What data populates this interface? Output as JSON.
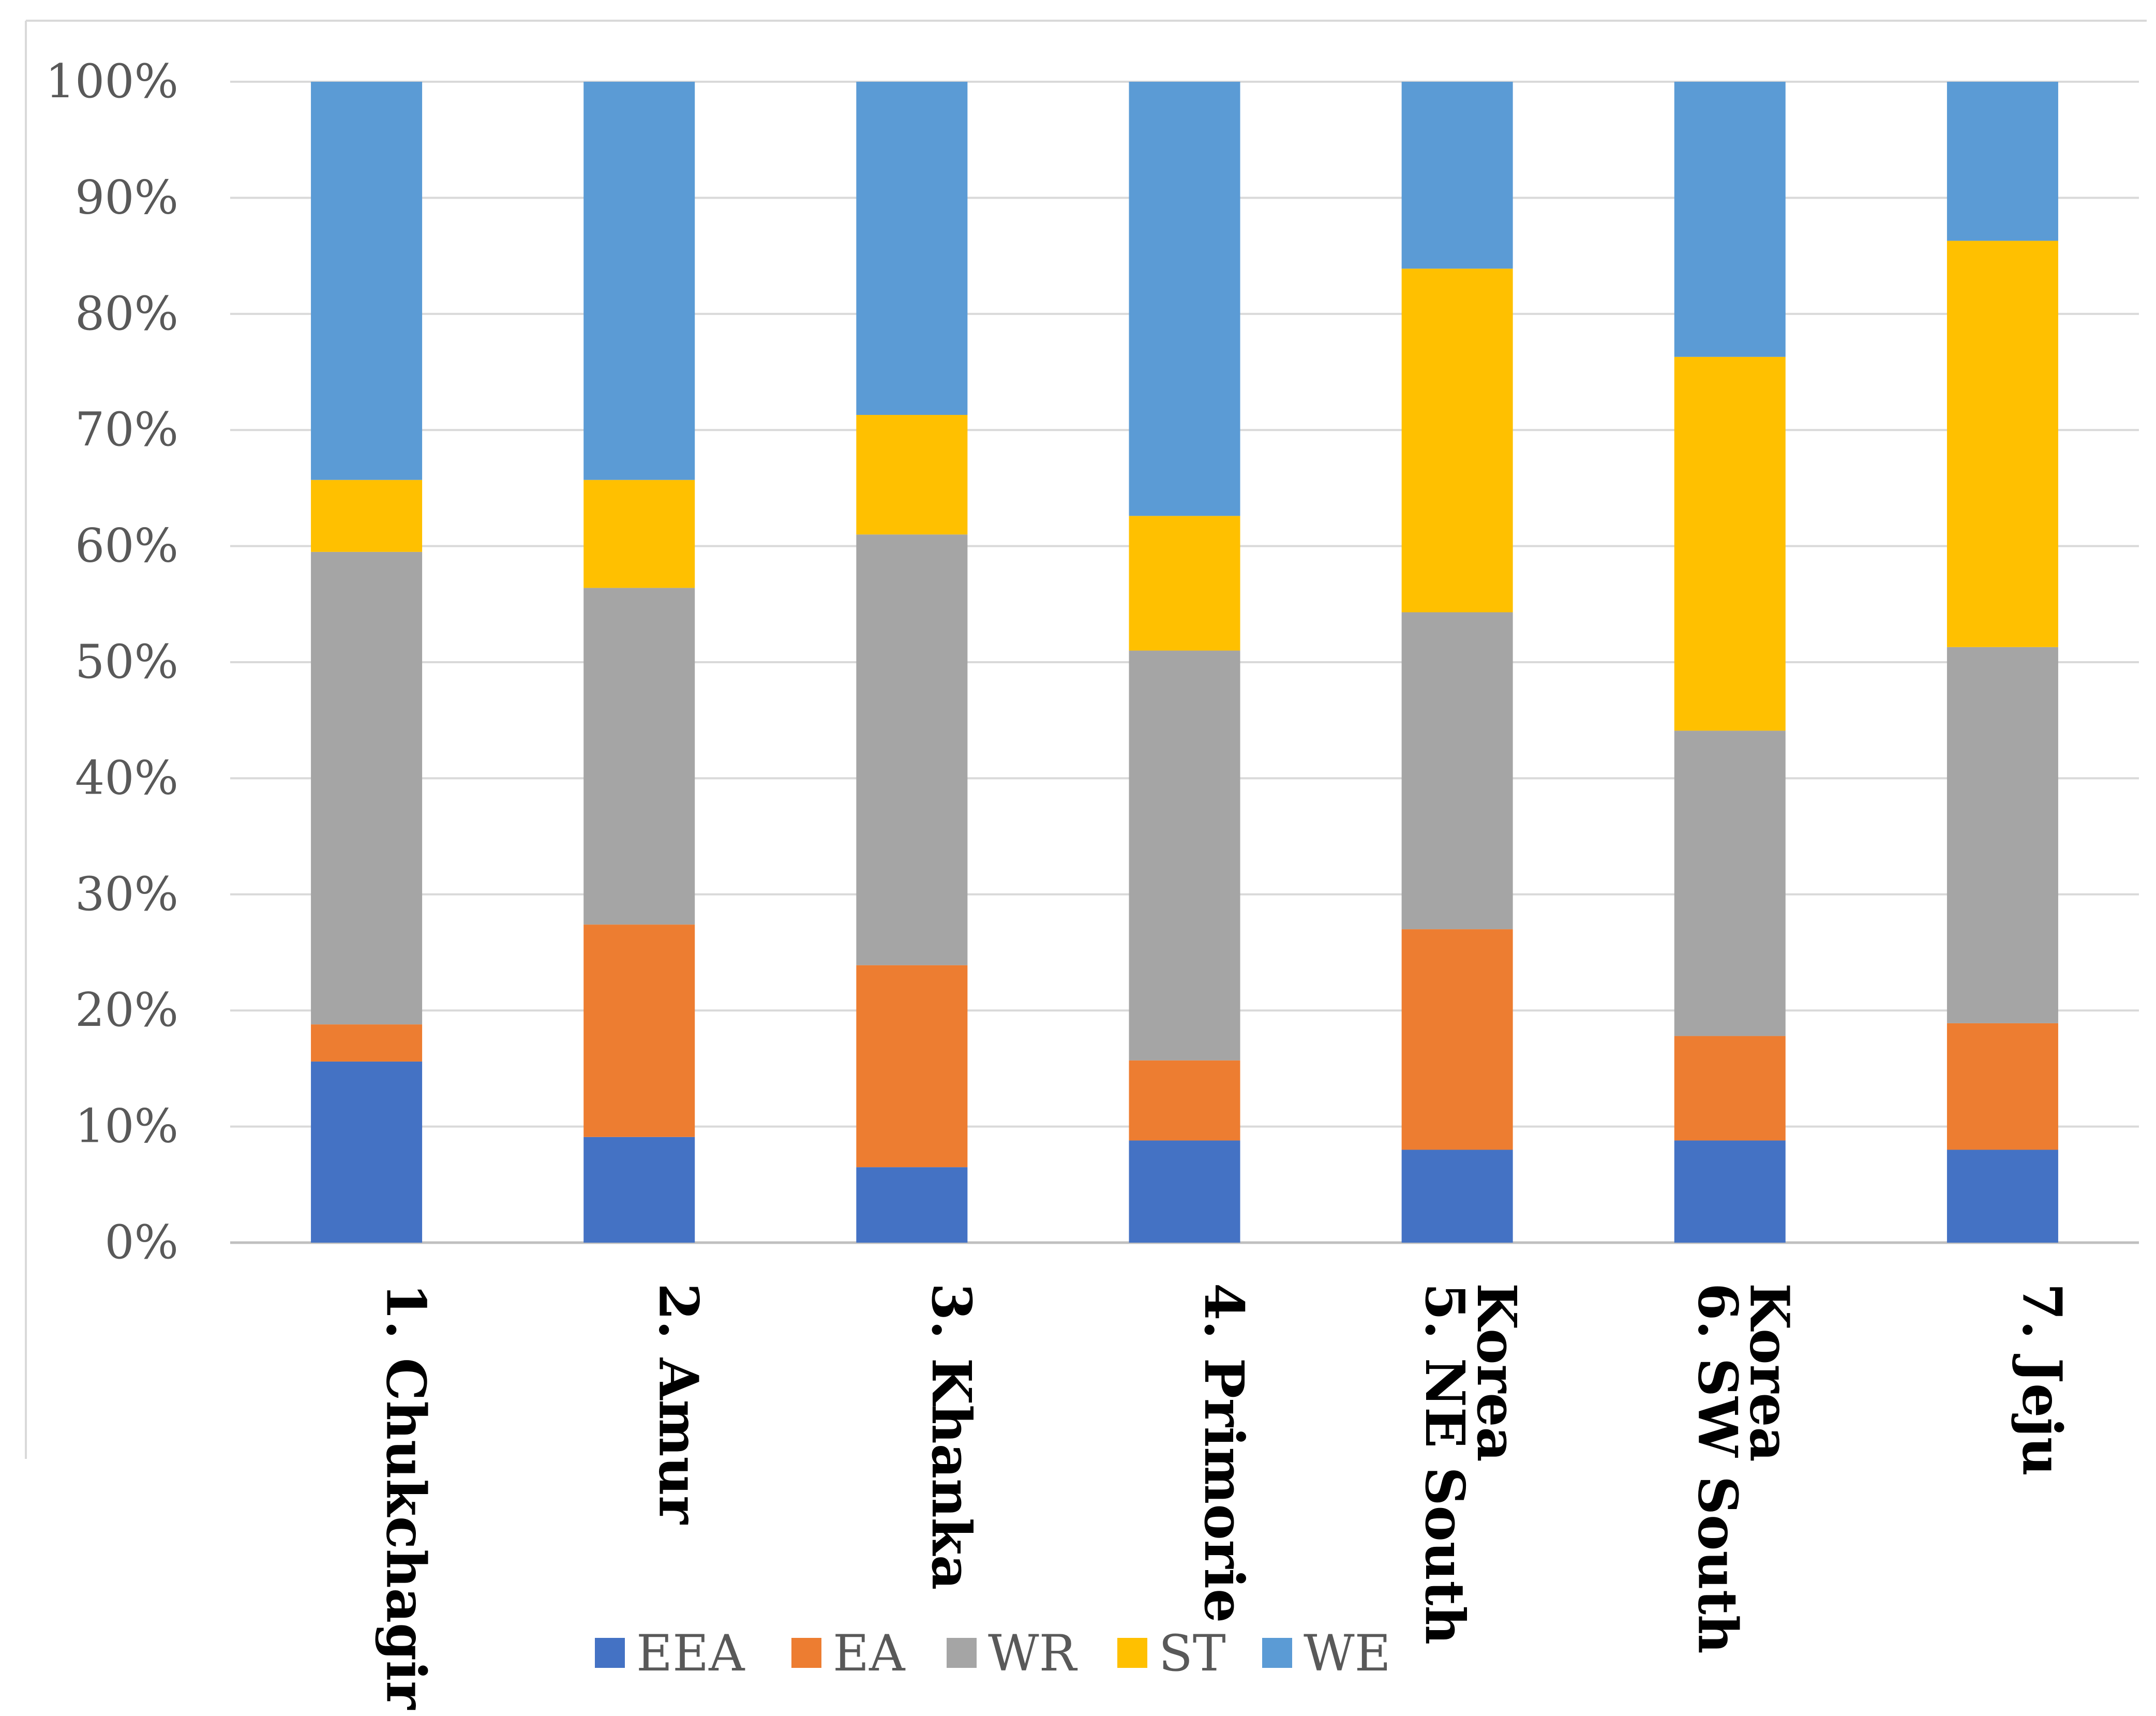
{
  "chart_data": {
    "type": "bar",
    "stacked": true,
    "percent": true,
    "title": "",
    "xlabel": "",
    "ylabel": "",
    "ylim": [
      0,
      100
    ],
    "y_ticks": [
      "0%",
      "10%",
      "20%",
      "30%",
      "40%",
      "50%",
      "60%",
      "70%",
      "80%",
      "90%",
      "100%"
    ],
    "grid": true,
    "categories": [
      [
        "1. Chukchagir"
      ],
      [
        "2. Amur"
      ],
      [
        "3. Khanka"
      ],
      [
        "4. Primorie"
      ],
      [
        "5. NE South",
        "Korea"
      ],
      [
        "6. SW South",
        "Korea"
      ],
      [
        "7. Jeju"
      ]
    ],
    "series": [
      {
        "name": "EEA",
        "color": "#4472C4",
        "values": [
          15.6,
          9.1,
          6.5,
          8.8,
          8.0,
          8.8,
          8.0
        ]
      },
      {
        "name": "EA",
        "color": "#ED7D31",
        "values": [
          3.2,
          18.3,
          17.4,
          6.9,
          19.0,
          9.0,
          10.9
        ]
      },
      {
        "name": "WR",
        "color": "#A5A5A5",
        "values": [
          40.7,
          29.0,
          37.1,
          35.3,
          27.3,
          26.3,
          32.4
        ]
      },
      {
        "name": "ST",
        "color": "#FFC000",
        "values": [
          6.2,
          9.3,
          10.3,
          11.6,
          29.6,
          32.2,
          35.0
        ]
      },
      {
        "name": "WE",
        "color": "#5B9BD5",
        "values": [
          34.3,
          34.3,
          28.7,
          37.4,
          16.1,
          23.7,
          13.7
        ]
      }
    ],
    "legend_position": "bottom"
  }
}
